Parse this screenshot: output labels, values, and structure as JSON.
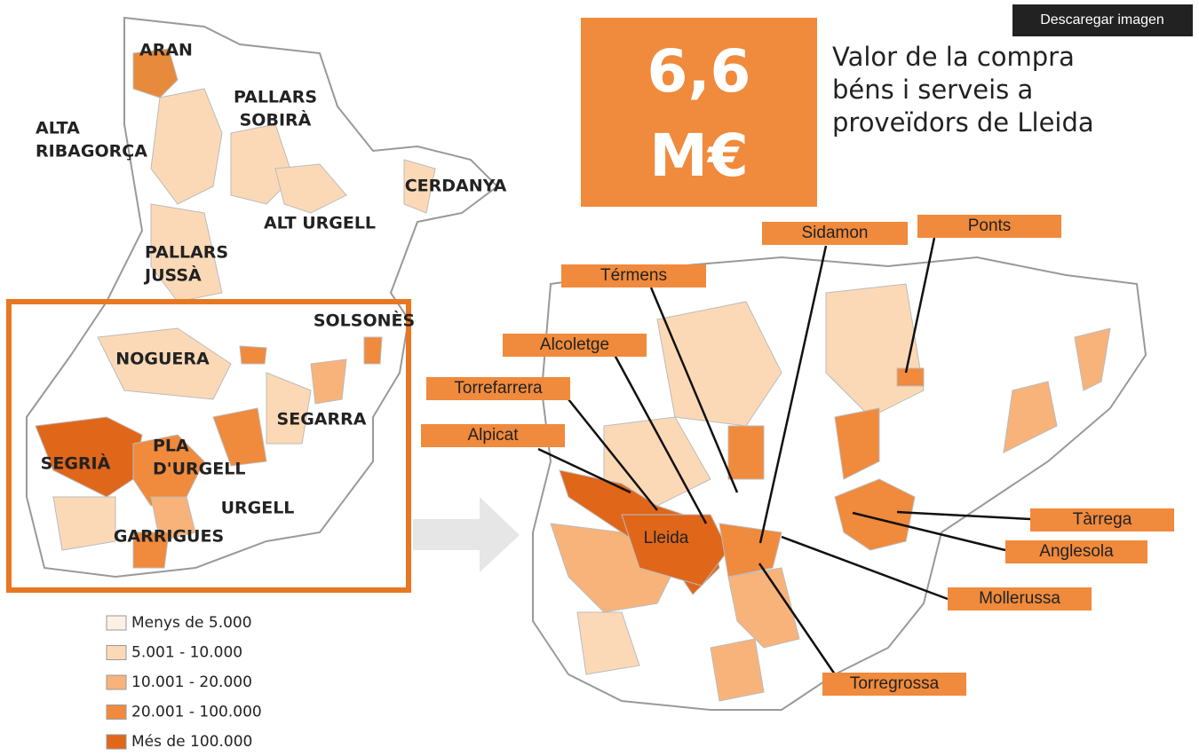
{
  "toolbar": {
    "download_button": "Descaregar imagen"
  },
  "highlight": {
    "value_lines": [
      "6,6",
      "M€"
    ],
    "description_lines": [
      "Valor de la compra",
      "béns i serveis a",
      "proveïdors de Lleida"
    ]
  },
  "overview_map": {
    "regions": [
      {
        "lines": [
          "ARAN"
        ]
      },
      {
        "lines": [
          "PALLARS",
          "SOBIRÀ"
        ]
      },
      {
        "lines": [
          "ALTA",
          "RIBAGORÇA"
        ]
      },
      {
        "lines": [
          "CERDANYA"
        ]
      },
      {
        "lines": [
          "ALT URGELL"
        ]
      },
      {
        "lines": [
          "PALLARS",
          "JUSSÀ"
        ]
      },
      {
        "lines": [
          "SOLSONÈS"
        ]
      },
      {
        "lines": [
          "NOGUERA"
        ]
      },
      {
        "lines": [
          "SEGARRA"
        ]
      },
      {
        "lines": [
          "PLA",
          "D'URGELL"
        ]
      },
      {
        "lines": [
          "SEGRIÀ"
        ]
      },
      {
        "lines": [
          "URGELL"
        ]
      },
      {
        "lines": [
          "GARRIGUES"
        ]
      }
    ]
  },
  "legend": {
    "items": [
      {
        "label": "Menys de 5.000",
        "color": "#fdf1e4"
      },
      {
        "label": "5.001 - 10.000",
        "color": "#fcd9b6"
      },
      {
        "label": "10.001 - 20.000",
        "color": "#f8b37a"
      },
      {
        "label": "20.001 - 100.000",
        "color": "#f08a3c"
      },
      {
        "label": "Més de 100.000",
        "color": "#e0661a"
      }
    ]
  },
  "detail_map": {
    "center_label": "Lleida",
    "towns": [
      "Sidamon",
      "Ponts",
      "Térmens",
      "Alcoletge",
      "Torrefarrera",
      "Alpicat",
      "Tàrrega",
      "Anglesola",
      "Mollerussa",
      "Torregrossa"
    ]
  }
}
